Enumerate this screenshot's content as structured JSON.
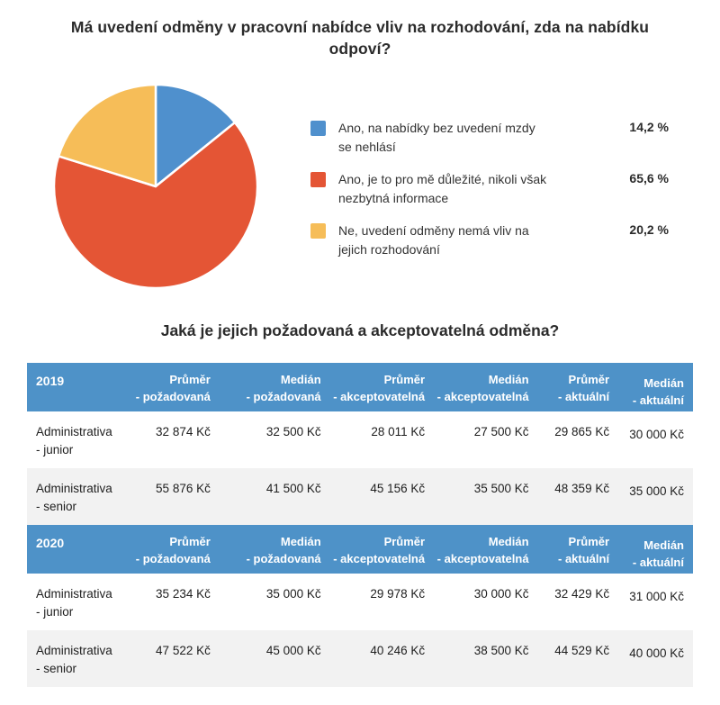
{
  "pie_section": {
    "title": "Má uvedení odměny v pracovní nabídce vliv na rozhodování, zda na nabídku odpoví?"
  },
  "table_section": {
    "title": "Jaká je jejich požadovaná a akceptovatelná odměna?"
  },
  "chart_data": [
    {
      "type": "pie",
      "title": "Má uvedení odměny v pracovní nabídce vliv na rozhodování, zda na nabídku odpoví?",
      "labels": [
        "Ano, na nabídky bez uvedení mzdy se nehlásí",
        "Ano, je to pro mě důležité, nikoli však nezbytná informace",
        "Ne, uvedení odměny nemá vliv na jejich rozhodování"
      ],
      "label_lines": [
        [
          "Ano, na nabídky bez uvedení mzdy",
          "se nehlásí"
        ],
        [
          "Ano, je to pro mě důležité, nikoli však",
          "nezbytná informace"
        ],
        [
          "Ne, uvedení odměny nemá vliv na",
          "jejich rozhodování"
        ]
      ],
      "values": [
        14.2,
        65.6,
        20.2
      ],
      "value_labels": [
        "14,2 %",
        "65,6 %",
        "20,2 %"
      ],
      "colors": [
        "#4f90cd",
        "#e45535",
        "#f6bd58"
      ],
      "slice_border_color": "#ffffff",
      "start_angle_deg": -90,
      "direction": "clockwise",
      "legend_position": "right"
    },
    {
      "type": "table",
      "title": "Jaká je jejich požadovaná a akceptovatelná odměna?",
      "year_label": "2019",
      "header_color": "#4e92c8",
      "zebra_color": "#f2f2f2",
      "columns": [
        {
          "top": "Průměr",
          "bottom": "- požadovaná"
        },
        {
          "top": "Medián",
          "bottom": "- požadovaná"
        },
        {
          "top": "Průměr",
          "bottom": "- akceptovatelná"
        },
        {
          "top": "Medián",
          "bottom": "- akceptovatelná"
        },
        {
          "top": "Průměr",
          "bottom": "- aktuální"
        },
        {
          "top": "Medián",
          "bottom": "- aktuální"
        }
      ],
      "rows": [
        {
          "label_top": "Administrativa",
          "label_bottom": "- junior",
          "values": [
            "32 874 Kč",
            "32 500 Kč",
            "28 011 Kč",
            "27 500 Kč",
            "29 865 Kč",
            "30 000 Kč"
          ]
        },
        {
          "label_top": "Administrativa",
          "label_bottom": "- senior",
          "values": [
            "55 876 Kč",
            "41 500 Kč",
            "45 156 Kč",
            "35 500 Kč",
            "48 359 Kč",
            "35 000 Kč"
          ]
        }
      ]
    },
    {
      "type": "table",
      "title": "Jaká je jejich požadovaná a akceptovatelná odměna?",
      "year_label": "2020",
      "header_color": "#4e92c8",
      "zebra_color": "#f2f2f2",
      "columns": [
        {
          "top": "Průměr",
          "bottom": "- požadovaná"
        },
        {
          "top": "Medián",
          "bottom": "- požadovaná"
        },
        {
          "top": "Průměr",
          "bottom": "- akceptovatelná"
        },
        {
          "top": "Medián",
          "bottom": "- akceptovatelná"
        },
        {
          "top": "Průměr",
          "bottom": "- aktuální"
        },
        {
          "top": "Medián",
          "bottom": "- aktuální"
        }
      ],
      "rows": [
        {
          "label_top": "Administrativa",
          "label_bottom": "- junior",
          "values": [
            "35 234 Kč",
            "35 000 Kč",
            "29 978 Kč",
            "30 000 Kč",
            "32 429 Kč",
            "31 000 Kč"
          ]
        },
        {
          "label_top": "Administrativa",
          "label_bottom": "- senior",
          "values": [
            "47 522 Kč",
            "45 000 Kč",
            "40 246 Kč",
            "38 500 Kč",
            "44 529 Kč",
            "40 000 Kč"
          ]
        }
      ]
    }
  ]
}
